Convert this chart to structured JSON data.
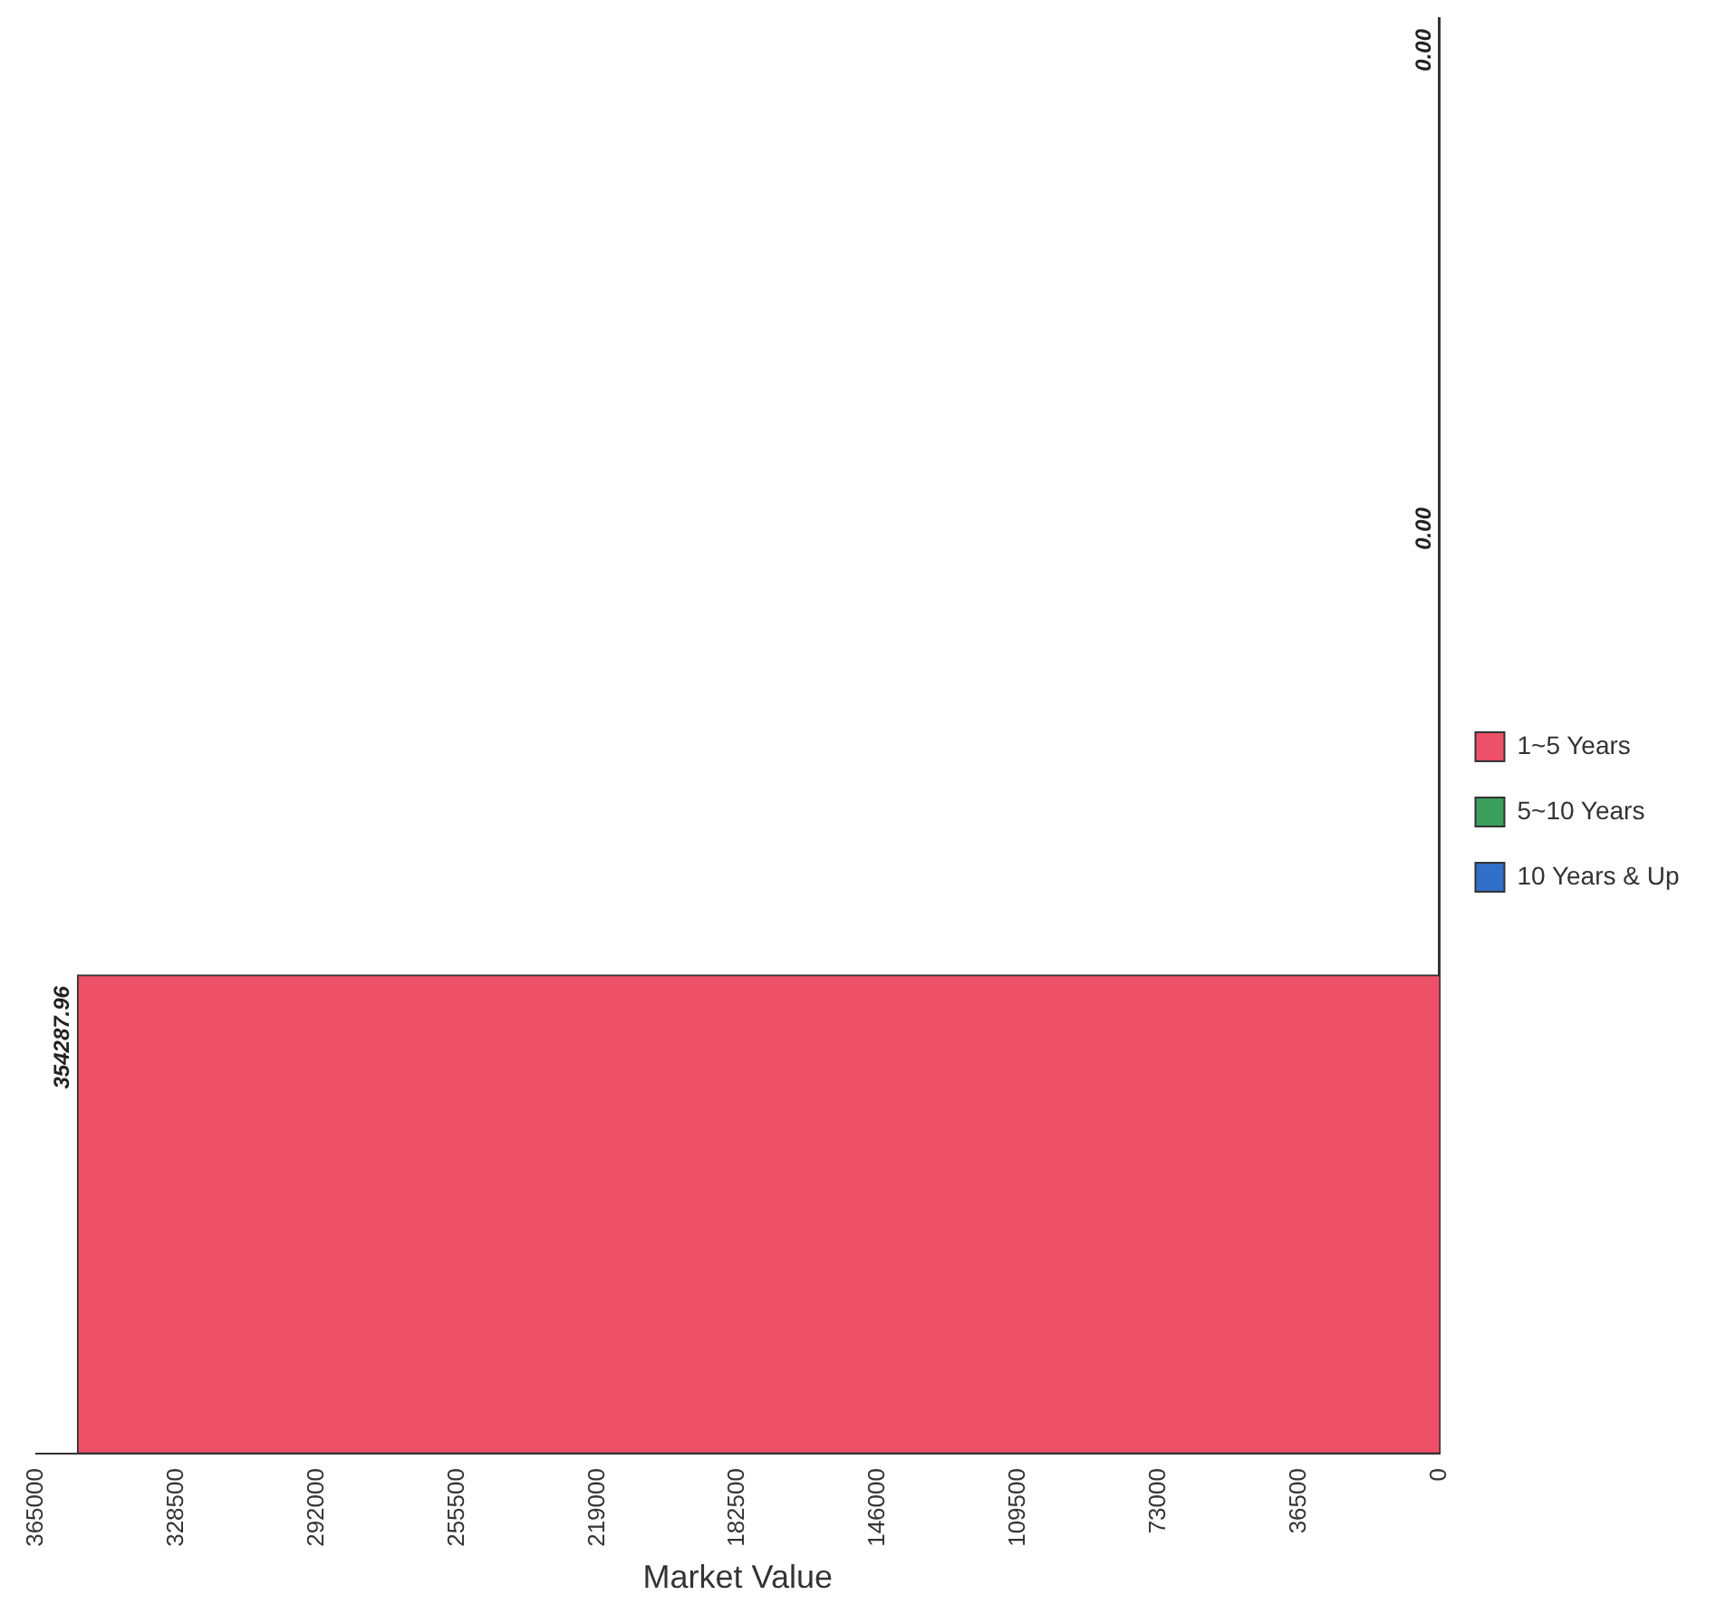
{
  "chart_data": {
    "type": "bar",
    "orientation": "horizontal",
    "xlabel": "Market Value",
    "categories": [
      null,
      null,
      null
    ],
    "series": [
      {
        "name": "1~5 Years",
        "color": "#ee5068",
        "values": [
          null,
          null,
          354287.96
        ],
        "value_labels": [
          null,
          null,
          "354287.96"
        ]
      },
      {
        "name": "5~10 Years",
        "color": "#3a9e5c",
        "values": [
          null,
          0,
          null
        ],
        "value_labels": [
          null,
          "0.00",
          null
        ]
      },
      {
        "name": "10 Years & Up",
        "color": "#2f6fc8",
        "values": [
          0,
          null,
          null
        ],
        "value_labels": [
          "0.00",
          null,
          null
        ]
      }
    ],
    "xlim": [
      365000,
      0
    ],
    "xticks": [
      365000,
      328500,
      292000,
      255500,
      219000,
      182500,
      146000,
      109500,
      73000,
      36500,
      0
    ],
    "grid": false,
    "legend": "right"
  }
}
